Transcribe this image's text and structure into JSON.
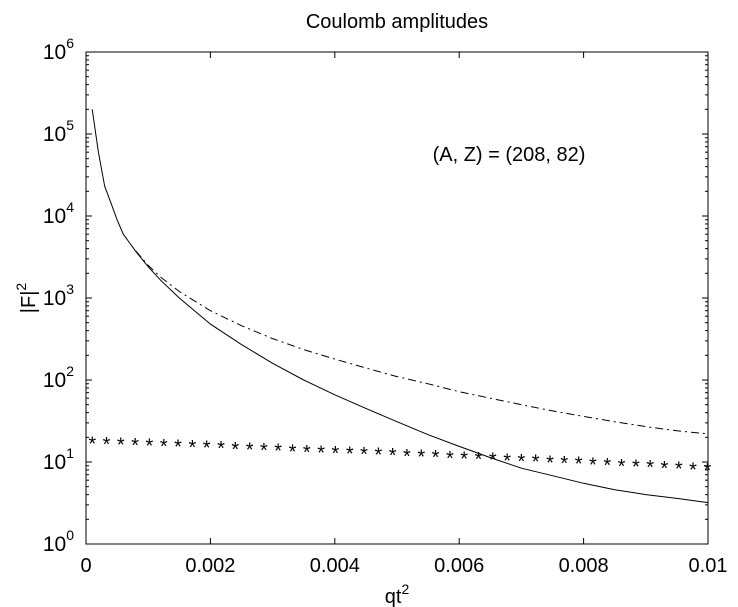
{
  "chart_data": {
    "type": "line",
    "title": "Coulomb amplitudes",
    "xlabel": "qt",
    "xlabel_sup": "2",
    "ylabel": "|F|",
    "ylabel_sup": "2",
    "annotation": "(A, Z) = (208, 82)",
    "xlim": [
      0,
      0.01
    ],
    "ylim": [
      1,
      1000000
    ],
    "yscale": "log",
    "grid": false,
    "x_ticks": [
      0,
      0.002,
      0.004,
      0.006,
      0.008,
      0.01
    ],
    "x_tick_labels": [
      "0",
      "0.002",
      "0.004",
      "0.006",
      "0.008",
      "0.01"
    ],
    "y_ticks": [
      1,
      10,
      100,
      1000,
      10000,
      100000,
      1000000
    ],
    "y_tick_labels": [
      {
        "base": "10",
        "exp": "0"
      },
      {
        "base": "10",
        "exp": "1"
      },
      {
        "base": "10",
        "exp": "2"
      },
      {
        "base": "10",
        "exp": "3"
      },
      {
        "base": "10",
        "exp": "4"
      },
      {
        "base": "10",
        "exp": "5"
      },
      {
        "base": "10",
        "exp": "6"
      }
    ],
    "series": [
      {
        "style": "solid",
        "color": "#000000",
        "x": [
          0.0001,
          0.0002,
          0.0003,
          0.0004,
          0.0005,
          0.0006,
          0.0008,
          0.001,
          0.0012,
          0.0015,
          0.002,
          0.0025,
          0.003,
          0.0035,
          0.004,
          0.0045,
          0.005,
          0.0055,
          0.006,
          0.0065,
          0.007,
          0.0075,
          0.008,
          0.0085,
          0.009,
          0.0095,
          0.01
        ],
        "y": [
          200000,
          60000,
          23000,
          14500,
          9000,
          6000,
          3700,
          2400,
          1650,
          1000,
          480,
          270,
          160,
          100,
          66,
          45,
          31,
          21.5,
          15.5,
          11.3,
          8.4,
          6.8,
          5.5,
          4.6,
          4,
          3.6,
          3.2
        ]
      },
      {
        "style": "dash-dot",
        "color": "#000000",
        "x": [
          0.0008,
          0.001,
          0.0012,
          0.0015,
          0.002,
          0.0025,
          0.003,
          0.0035,
          0.004,
          0.0045,
          0.005,
          0.0055,
          0.006,
          0.0065,
          0.007,
          0.0075,
          0.008,
          0.0085,
          0.009,
          0.0095,
          0.01
        ],
        "y": [
          3750,
          2500,
          1800,
          1200,
          700,
          460,
          320,
          235,
          180,
          140,
          110,
          90,
          72,
          60,
          50,
          42,
          36,
          31,
          27,
          24,
          22
        ]
      },
      {
        "style": "markers",
        "marker": "*",
        "color": "#000000",
        "x": [
          0.0001,
          0.00033,
          0.00056,
          0.00079,
          0.00102,
          0.00125,
          0.00148,
          0.00171,
          0.00194,
          0.00217,
          0.0024,
          0.00263,
          0.00286,
          0.00309,
          0.00332,
          0.00355,
          0.00378,
          0.00401,
          0.00424,
          0.00447,
          0.0047,
          0.00493,
          0.00516,
          0.00539,
          0.00562,
          0.00585,
          0.00608,
          0.00631,
          0.00654,
          0.00677,
          0.007,
          0.00723,
          0.00746,
          0.00769,
          0.00792,
          0.00815,
          0.00838,
          0.00861,
          0.00884,
          0.00907,
          0.0093,
          0.00953,
          0.00976,
          0.00999
        ],
        "y": [
          17.9,
          17.6,
          17.3,
          17.1,
          16.8,
          16.6,
          16.3,
          16.1,
          15.8,
          15.6,
          15.3,
          15.1,
          14.8,
          14.6,
          14.3,
          14.1,
          13.9,
          13.6,
          13.4,
          13.2,
          13.0,
          12.8,
          12.5,
          12.3,
          12.1,
          11.9,
          11.7,
          11.5,
          11.3,
          11.1,
          10.9,
          10.7,
          10.5,
          10.3,
          10.1,
          9.9,
          9.7,
          9.5,
          9.3,
          9.2,
          9.0,
          8.8,
          8.6,
          8.5
        ]
      }
    ]
  }
}
